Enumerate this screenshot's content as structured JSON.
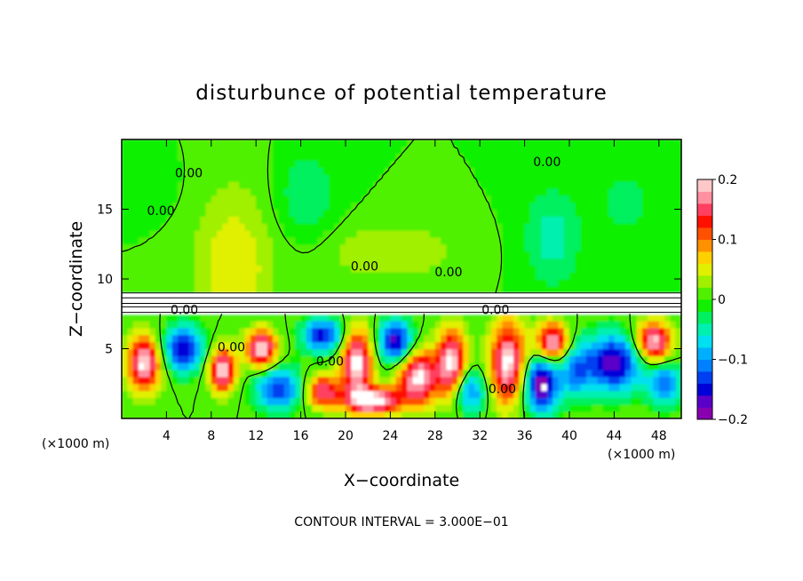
{
  "chart_data": {
    "type": "heatmap",
    "title": "disturbunce of potential temperature",
    "xlabel": "X−coordinate",
    "ylabel": "Z−coordinate",
    "x_unit_left": "(×1000 m)",
    "x_unit_right": "(×1000 m)",
    "xlim": [
      0,
      50
    ],
    "ylim": [
      0,
      20
    ],
    "x_ticks": [
      4,
      8,
      12,
      16,
      20,
      24,
      28,
      32,
      36,
      40,
      44,
      48
    ],
    "y_ticks": [
      5,
      10,
      15
    ],
    "colorbar": {
      "range": [
        -0.2,
        0.2
      ],
      "ticks": [
        {
          "value": 0.2,
          "label": "0.2"
        },
        {
          "value": 0.1,
          "label": "0.1"
        },
        {
          "value": 0,
          "label": "0"
        },
        {
          "value": -0.1,
          "label": "−0.1"
        },
        {
          "value": -0.2,
          "label": "−0.2"
        }
      ],
      "colors": [
        "#8a00b0",
        "#5a00c8",
        "#0000d8",
        "#0040f0",
        "#0080ff",
        "#00b0ff",
        "#00e0f0",
        "#00f0b0",
        "#00f060",
        "#10f000",
        "#50f000",
        "#a0f000",
        "#e0f000",
        "#ffd000",
        "#ff9000",
        "#ff5000",
        "#ff1000",
        "#ff4060",
        "#ff90a0",
        "#ffc8c8"
      ]
    },
    "contour_labels": [
      {
        "text": "0.00",
        "x": 38.0,
        "z": 18.1
      },
      {
        "text": "0.00",
        "x": 6.0,
        "z": 17.3
      },
      {
        "text": "0.00",
        "x": 3.5,
        "z": 14.6
      },
      {
        "text": "0.00",
        "x": 21.7,
        "z": 10.6
      },
      {
        "text": "0.00",
        "x": 29.2,
        "z": 10.2
      },
      {
        "text": "0.00",
        "x": 5.6,
        "z": 7.5
      },
      {
        "text": "0.00",
        "x": 33.4,
        "z": 7.5
      },
      {
        "text": "0.00",
        "x": 9.8,
        "z": 4.8
      },
      {
        "text": "0.00",
        "x": 18.6,
        "z": 3.8
      },
      {
        "text": "0.00",
        "x": 34.0,
        "z": 1.8
      }
    ],
    "contour_interval_text": "CONTOUR INTERVAL = 3.000E−01",
    "field": {
      "upper_layer_z_min": 9,
      "lower_layer_z_max": 7.5,
      "upper_blobs": [
        {
          "x": 10.0,
          "z": 10.5,
          "rx": 3.5,
          "rz": 6.0,
          "v": 0.06
        },
        {
          "x": 24.0,
          "z": 12.0,
          "rx": 6.0,
          "rz": 2.0,
          "v": 0.04
        },
        {
          "x": 16.5,
          "z": 16.0,
          "rx": 2.5,
          "rz": 3.0,
          "v": -0.04
        },
        {
          "x": 38.5,
          "z": 13.0,
          "rx": 2.5,
          "rz": 3.5,
          "v": -0.05
        },
        {
          "x": 45.0,
          "z": 15.5,
          "rx": 2.5,
          "rz": 2.5,
          "v": -0.03
        },
        {
          "x": 2.5,
          "z": 17.0,
          "rx": 2.0,
          "rz": 2.0,
          "v": -0.02
        }
      ],
      "lower_blobs": [
        {
          "x": 2.0,
          "z": 4.0,
          "rx": 1.5,
          "rz": 2.0,
          "v": 0.2
        },
        {
          "x": 5.5,
          "z": 5.0,
          "rx": 1.8,
          "rz": 1.6,
          "v": -0.16
        },
        {
          "x": 9.0,
          "z": 3.5,
          "rx": 1.2,
          "rz": 1.6,
          "v": 0.2
        },
        {
          "x": 12.5,
          "z": 5.0,
          "rx": 1.4,
          "rz": 1.4,
          "v": 0.2
        },
        {
          "x": 14.0,
          "z": 2.2,
          "rx": 2.0,
          "rz": 1.5,
          "v": -0.14
        },
        {
          "x": 18.0,
          "z": 6.0,
          "rx": 1.8,
          "rz": 1.2,
          "v": -0.15
        },
        {
          "x": 18.0,
          "z": 2.0,
          "rx": 1.5,
          "rz": 1.2,
          "v": 0.16
        },
        {
          "x": 21.0,
          "z": 4.0,
          "rx": 1.4,
          "rz": 2.5,
          "v": 0.2
        },
        {
          "x": 22.5,
          "z": 1.3,
          "rx": 2.5,
          "rz": 1.0,
          "v": 0.2
        },
        {
          "x": 24.5,
          "z": 5.5,
          "rx": 1.5,
          "rz": 1.5,
          "v": -0.18
        },
        {
          "x": 26.5,
          "z": 3.0,
          "rx": 1.8,
          "rz": 2.0,
          "v": 0.2
        },
        {
          "x": 29.5,
          "z": 4.0,
          "rx": 1.3,
          "rz": 2.5,
          "v": 0.2
        },
        {
          "x": 31.0,
          "z": 2.0,
          "rx": 1.5,
          "rz": 1.5,
          "v": -0.12
        },
        {
          "x": 34.5,
          "z": 4.0,
          "rx": 1.6,
          "rz": 3.0,
          "v": 0.2
        },
        {
          "x": 37.5,
          "z": 2.5,
          "rx": 1.5,
          "rz": 2.0,
          "v": -0.2
        },
        {
          "x": 38.5,
          "z": 5.5,
          "rx": 1.5,
          "rz": 1.4,
          "v": 0.2
        },
        {
          "x": 40.5,
          "z": 3.5,
          "rx": 1.5,
          "rz": 2.0,
          "v": -0.1
        },
        {
          "x": 44.0,
          "z": 4.0,
          "rx": 2.5,
          "rz": 2.0,
          "v": -0.18
        },
        {
          "x": 47.5,
          "z": 5.5,
          "rx": 1.6,
          "rz": 1.5,
          "v": 0.2
        },
        {
          "x": 48.5,
          "z": 2.5,
          "rx": 1.5,
          "rz": 1.5,
          "v": -0.12
        }
      ]
    }
  }
}
